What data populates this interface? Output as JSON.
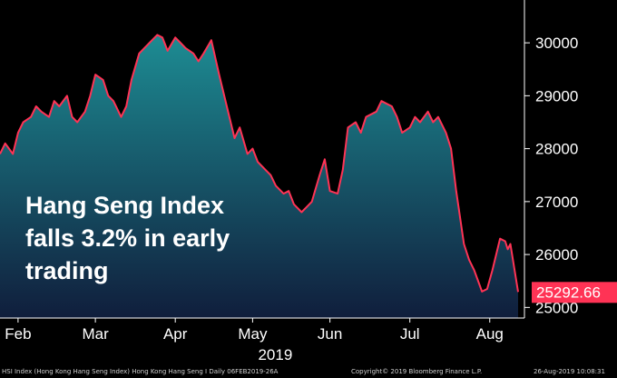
{
  "headline": {
    "line1": "Hang Seng Index",
    "line2": "falls 3.2% in early",
    "line3": "trading"
  },
  "footer": {
    "source": "HSI Index (Hong Kong Hang Seng Index) Hong Kong Hang Seng I  Daily 06FEB2019-26A",
    "copyright": "Copyright© 2019 Bloomberg Finance L.P.",
    "timestamp": "26-Aug-2019 10:08:31"
  },
  "colors": {
    "line": "#ff3355",
    "fill_top": "#1d8c93",
    "fill_bottom": "#101e3c",
    "last_value_bg": "#ff3355",
    "axis_text": "#ffffff",
    "background": "#000000"
  },
  "chart_data": {
    "type": "area",
    "xlabel": "2019",
    "ylabel": "",
    "x_range": [
      "2019-02-06",
      "2019-08-26"
    ],
    "ylim": [
      24800,
      30500
    ],
    "y_ticks": [
      25000,
      26000,
      27000,
      28000,
      29000,
      30000
    ],
    "y_tick_labels": [
      "25000",
      "26000",
      "27000",
      "28000",
      "29000",
      "30000"
    ],
    "x_ticks": [
      {
        "label": "Feb",
        "date": "2019-02-13"
      },
      {
        "label": "Mar",
        "date": "2019-03-15"
      },
      {
        "label": "Apr",
        "date": "2019-04-15"
      },
      {
        "label": "May",
        "date": "2019-05-15"
      },
      {
        "label": "Jun",
        "date": "2019-06-14"
      },
      {
        "label": "Jul",
        "date": "2019-07-15"
      },
      {
        "label": "Aug",
        "date": "2019-08-15"
      }
    ],
    "last_value_label": "25292.66",
    "grid": false,
    "series": [
      {
        "values": [
          [
            "2019-02-06",
            27900
          ],
          [
            "2019-02-08",
            28100
          ],
          [
            "2019-02-11",
            27900
          ],
          [
            "2019-02-13",
            28300
          ],
          [
            "2019-02-15",
            28500
          ],
          [
            "2019-02-18",
            28600
          ],
          [
            "2019-02-20",
            28800
          ],
          [
            "2019-02-22",
            28700
          ],
          [
            "2019-02-25",
            28600
          ],
          [
            "2019-02-27",
            28900
          ],
          [
            "2019-03-01",
            28800
          ],
          [
            "2019-03-04",
            29000
          ],
          [
            "2019-03-06",
            28600
          ],
          [
            "2019-03-08",
            28500
          ],
          [
            "2019-03-11",
            28700
          ],
          [
            "2019-03-13",
            29000
          ],
          [
            "2019-03-15",
            29400
          ],
          [
            "2019-03-18",
            29300
          ],
          [
            "2019-03-20",
            29000
          ],
          [
            "2019-03-22",
            28900
          ],
          [
            "2019-03-25",
            28600
          ],
          [
            "2019-03-27",
            28800
          ],
          [
            "2019-03-29",
            29300
          ],
          [
            "2019-04-01",
            29800
          ],
          [
            "2019-04-03",
            29900
          ],
          [
            "2019-04-05",
            30000
          ],
          [
            "2019-04-08",
            30150
          ],
          [
            "2019-04-10",
            30100
          ],
          [
            "2019-04-12",
            29850
          ],
          [
            "2019-04-15",
            30100
          ],
          [
            "2019-04-17",
            30000
          ],
          [
            "2019-04-19",
            29900
          ],
          [
            "2019-04-22",
            29800
          ],
          [
            "2019-04-24",
            29650
          ],
          [
            "2019-04-26",
            29800
          ],
          [
            "2019-04-29",
            30050
          ],
          [
            "2019-05-02",
            29400
          ],
          [
            "2019-05-06",
            28600
          ],
          [
            "2019-05-08",
            28200
          ],
          [
            "2019-05-10",
            28400
          ],
          [
            "2019-05-13",
            27900
          ],
          [
            "2019-05-15",
            28000
          ],
          [
            "2019-05-17",
            27750
          ],
          [
            "2019-05-20",
            27600
          ],
          [
            "2019-05-22",
            27500
          ],
          [
            "2019-05-24",
            27300
          ],
          [
            "2019-05-27",
            27150
          ],
          [
            "2019-05-29",
            27200
          ],
          [
            "2019-05-31",
            26950
          ],
          [
            "2019-06-03",
            26800
          ],
          [
            "2019-06-05",
            26900
          ],
          [
            "2019-06-07",
            27000
          ],
          [
            "2019-06-10",
            27500
          ],
          [
            "2019-06-12",
            27800
          ],
          [
            "2019-06-14",
            27200
          ],
          [
            "2019-06-17",
            27150
          ],
          [
            "2019-06-19",
            27600
          ],
          [
            "2019-06-21",
            28400
          ],
          [
            "2019-06-24",
            28500
          ],
          [
            "2019-06-26",
            28300
          ],
          [
            "2019-06-28",
            28600
          ],
          [
            "2019-07-02",
            28700
          ],
          [
            "2019-07-04",
            28900
          ],
          [
            "2019-07-08",
            28800
          ],
          [
            "2019-07-10",
            28600
          ],
          [
            "2019-07-12",
            28300
          ],
          [
            "2019-07-15",
            28400
          ],
          [
            "2019-07-17",
            28600
          ],
          [
            "2019-07-19",
            28500
          ],
          [
            "2019-07-22",
            28700
          ],
          [
            "2019-07-24",
            28500
          ],
          [
            "2019-07-26",
            28600
          ],
          [
            "2019-07-29",
            28300
          ],
          [
            "2019-07-31",
            28000
          ],
          [
            "2019-08-02",
            27200
          ],
          [
            "2019-08-05",
            26200
          ],
          [
            "2019-08-07",
            25900
          ],
          [
            "2019-08-09",
            25700
          ],
          [
            "2019-08-12",
            25300
          ],
          [
            "2019-08-14",
            25350
          ],
          [
            "2019-08-16",
            25700
          ],
          [
            "2019-08-19",
            26300
          ],
          [
            "2019-08-21",
            26250
          ],
          [
            "2019-08-22",
            26100
          ],
          [
            "2019-08-23",
            26200
          ],
          [
            "2019-08-26",
            25292.66
          ]
        ]
      }
    ]
  }
}
